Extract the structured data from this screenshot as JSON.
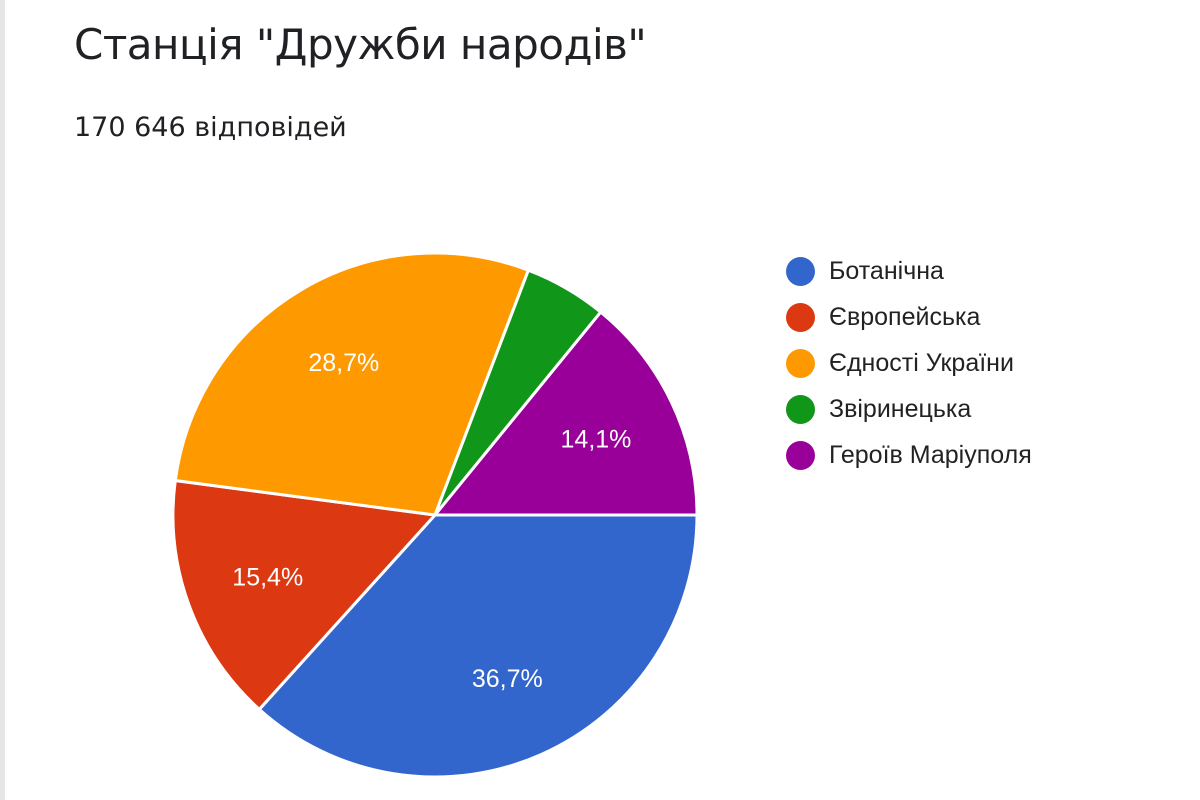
{
  "header": {
    "title": "Станція \"Дружби народів\"",
    "responses": "170 646 відповідей"
  },
  "legend": [
    {
      "label": "Ботанічна",
      "color": "#3366cc"
    },
    {
      "label": "Європейська",
      "color": "#dc3912"
    },
    {
      "label": "Єдності України",
      "color": "#ff9900"
    },
    {
      "label": "Звіринецька",
      "color": "#109618"
    },
    {
      "label": "Героїв Маріуполя",
      "color": "#990099"
    }
  ],
  "chart_data": {
    "type": "pie",
    "title": "Станція \"Дружби народів\"",
    "subtitle": "170 646 відповідей",
    "categories": [
      "Ботанічна",
      "Європейська",
      "Єдності України",
      "Звіринецька",
      "Героїв Маріуполя"
    ],
    "values": [
      36.7,
      15.4,
      28.7,
      5.1,
      14.1
    ],
    "data_labels": [
      "36,7%",
      "15,4%",
      "28,7%",
      "",
      "14,1%"
    ],
    "colors": [
      "#3366cc",
      "#dc3912",
      "#ff9900",
      "#109618",
      "#990099"
    ],
    "legend_position": "right",
    "units": "%"
  }
}
